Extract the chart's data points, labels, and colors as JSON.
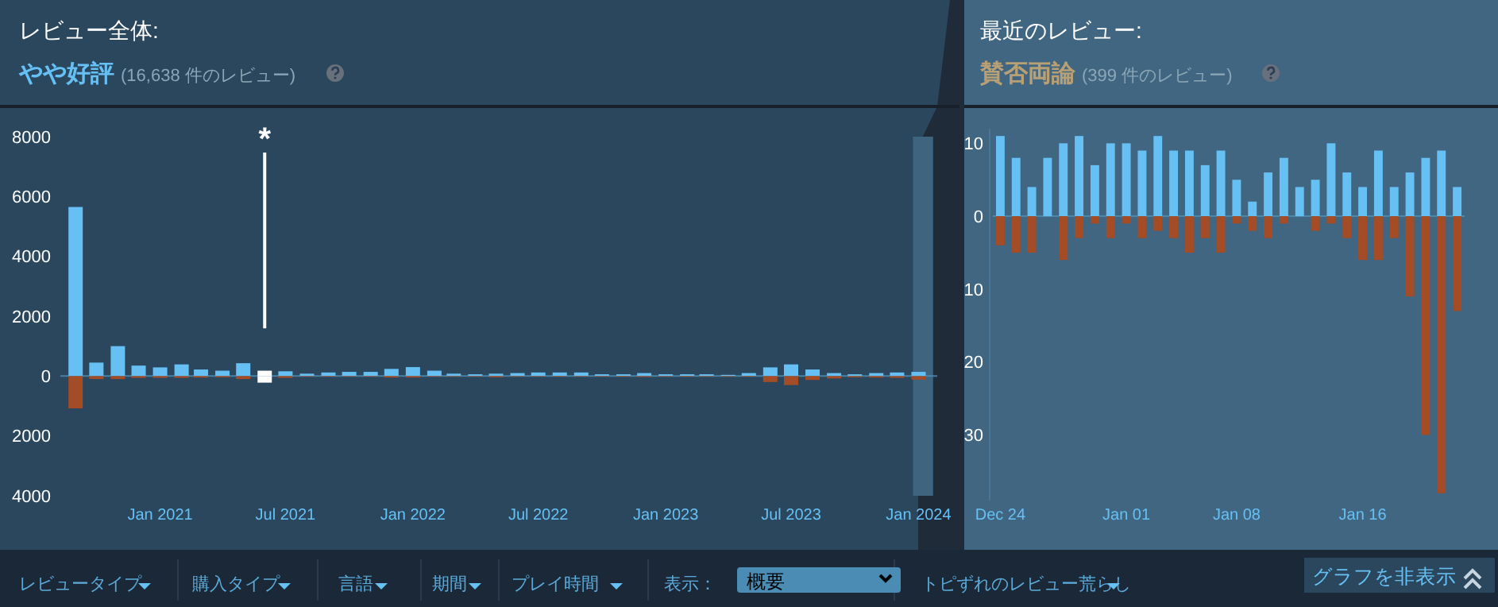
{
  "chart_data": [
    {
      "type": "bar",
      "title": "レビュー全体:",
      "subtitle": "やや好評",
      "stacked": true,
      "x": [
        "2020-09",
        "2020-10",
        "2020-11",
        "2020-12",
        "2021-01",
        "2021-02",
        "2021-03",
        "2021-04",
        "2021-05",
        "2021-06",
        "2021-07",
        "2021-08",
        "2021-09",
        "2021-10",
        "2021-11",
        "2021-12",
        "2022-01",
        "2022-02",
        "2022-03",
        "2022-04",
        "2022-05",
        "2022-06",
        "2022-07",
        "2022-08",
        "2022-09",
        "2022-10",
        "2022-11",
        "2022-12",
        "2023-01",
        "2023-02",
        "2023-03",
        "2023-04",
        "2023-05",
        "2023-06",
        "2023-07",
        "2023-08",
        "2023-09",
        "2023-10",
        "2023-11",
        "2023-12",
        "2024-01"
      ],
      "series": [
        {
          "colors": [
            "#66c0f4",
            "#66c0f4",
            "#66c0f4",
            "#66c0f4",
            "#66c0f4",
            "#66c0f4",
            "#66c0f4",
            "#66c0f4",
            "#66c0f4",
            "#ffffff",
            "#66c0f4",
            "#66c0f4",
            "#66c0f4",
            "#66c0f4",
            "#66c0f4",
            "#66c0f4",
            "#66c0f4",
            "#66c0f4",
            "#66c0f4",
            "#66c0f4",
            "#66c0f4",
            "#66c0f4",
            "#66c0f4",
            "#66c0f4",
            "#66c0f4",
            "#66c0f4",
            "#66c0f4",
            "#66c0f4",
            "#66c0f4",
            "#66c0f4",
            "#66c0f4",
            "#66c0f4",
            "#66c0f4",
            "#66c0f4",
            "#66c0f4",
            "#66c0f4",
            "#66c0f4",
            "#66c0f4",
            "#66c0f4",
            "#66c0f4",
            "#66c0f4"
          ],
          "values": [
            5650,
            450,
            1000,
            350,
            290,
            390,
            220,
            180,
            430,
            180,
            160,
            80,
            120,
            140,
            140,
            240,
            300,
            180,
            80,
            60,
            80,
            100,
            120,
            120,
            120,
            60,
            60,
            100,
            60,
            60,
            60,
            40,
            100,
            290,
            390,
            220,
            100,
            60,
            100,
            120,
            140
          ]
        },
        {
          "colors": [
            "#a34c25",
            "#a34c25",
            "#a34c25",
            "#a34c25",
            "#a34c25",
            "#a34c25",
            "#a34c25",
            "#a34c25",
            "#a34c25",
            "#ffffff",
            "#a34c25",
            "#a34c25",
            "#a34c25",
            "#a34c25",
            "#a34c25",
            "#a34c25",
            "#a34c25",
            "#a34c25",
            "#a34c25",
            "#a34c25",
            "#a34c25",
            "#a34c25",
            "#a34c25",
            "#a34c25",
            "#a34c25",
            "#a34c25",
            "#a34c25",
            "#a34c25",
            "#a34c25",
            "#a34c25",
            "#a34c25",
            "#a34c25",
            "#a34c25",
            "#a34c25",
            "#a34c25",
            "#a34c25",
            "#a34c25",
            "#a34c25",
            "#a34c25",
            "#a34c25",
            "#a34c25"
          ],
          "values": [
            -1080,
            -100,
            -100,
            -60,
            -60,
            -60,
            -50,
            -40,
            -100,
            -220,
            -60,
            -20,
            -20,
            -20,
            -20,
            -50,
            -50,
            -20,
            -20,
            -20,
            -40,
            -20,
            -20,
            -20,
            -20,
            -20,
            -20,
            -30,
            -20,
            -20,
            -20,
            -20,
            -20,
            -200,
            -300,
            -130,
            -80,
            -40,
            -50,
            -60,
            -120
          ]
        }
      ],
      "xlim": [
        "2020-08-10",
        "2024-01-28"
      ],
      "xticks": [
        {
          "value": "2021-01",
          "label": "Jan 2021"
        },
        {
          "value": "2021-07",
          "label": "Jul 2021"
        },
        {
          "value": "2022-01",
          "label": "Jan 2022"
        },
        {
          "value": "2022-07",
          "label": "Jul 2022"
        },
        {
          "value": "2023-01",
          "label": "Jan 2023"
        },
        {
          "value": "2023-07",
          "label": "Jul 2023"
        },
        {
          "value": "2024-01",
          "label": "Jan 2024"
        }
      ],
      "ylim": [
        -4000,
        8000
      ],
      "yticks": [
        {
          "value": -4000,
          "label": "4000"
        },
        {
          "value": -2000,
          "label": "2000"
        },
        0,
        2000,
        4000,
        6000,
        8000
      ],
      "bands": [
        {
          "axis": "x",
          "from": "2023-12-24",
          "to": "2024-01-22",
          "color": "#3f6480"
        }
      ],
      "ref_lines": [
        {
          "axis": "y",
          "value": 0,
          "color": "#4f8fb5"
        }
      ],
      "annotations": [
        "(16,638 件のレビュー)",
        {
          "text": "*",
          "x": "2021-06"
        }
      ]
    },
    {
      "type": "bar",
      "title": "最近のレビュー:",
      "subtitle": "賛否両論",
      "stacked": true,
      "categories": [
        "Dec 24",
        null,
        null,
        null,
        null,
        null,
        null,
        null,
        "Jan 01",
        null,
        null,
        null,
        null,
        null,
        null,
        "Jan 08",
        null,
        null,
        null,
        null,
        null,
        null,
        null,
        "Jan 16",
        null,
        null,
        null,
        null,
        null,
        null
      ],
      "series": [
        {
          "color": "#66c0f4",
          "values": [
            11,
            8,
            4,
            8,
            10,
            11,
            7,
            10,
            10,
            9,
            11,
            9,
            9,
            7,
            9,
            5,
            2,
            6,
            8,
            4,
            5,
            10,
            6,
            4,
            9,
            4,
            6,
            8,
            9,
            4
          ]
        },
        {
          "color": "#a34c25",
          "values": [
            -4,
            -5,
            -5,
            0,
            -6,
            -3,
            -1,
            -3,
            -1,
            -3,
            -2,
            -3,
            -5,
            -3,
            -5,
            -1,
            -2,
            -3,
            -1,
            0,
            -2,
            -1,
            -3,
            -6,
            -6,
            -3,
            -11,
            -30,
            -38,
            -13
          ]
        }
      ],
      "ylim": [
        -39,
        12
      ],
      "ref_lines": [
        {
          "axis": "y",
          "value": 0,
          "color": "#4f8fb5"
        }
      ],
      "yticks": [
        {
          "value": -30,
          "label": "30"
        },
        {
          "value": -20,
          "label": "20"
        },
        {
          "value": -10,
          "label": "10"
        },
        0,
        10
      ],
      "annotations": [
        "(399 件のレビュー)"
      ]
    },
    {
      "type": "other",
      "annotations": [
        "レビュータイプ",
        "購入タイプ",
        "言語",
        "期間",
        "プレイ時間",
        "表示：",
        "概要",
        "トピずれのレビュー荒らし",
        "グラフを非表示"
      ]
    }
  ]
}
